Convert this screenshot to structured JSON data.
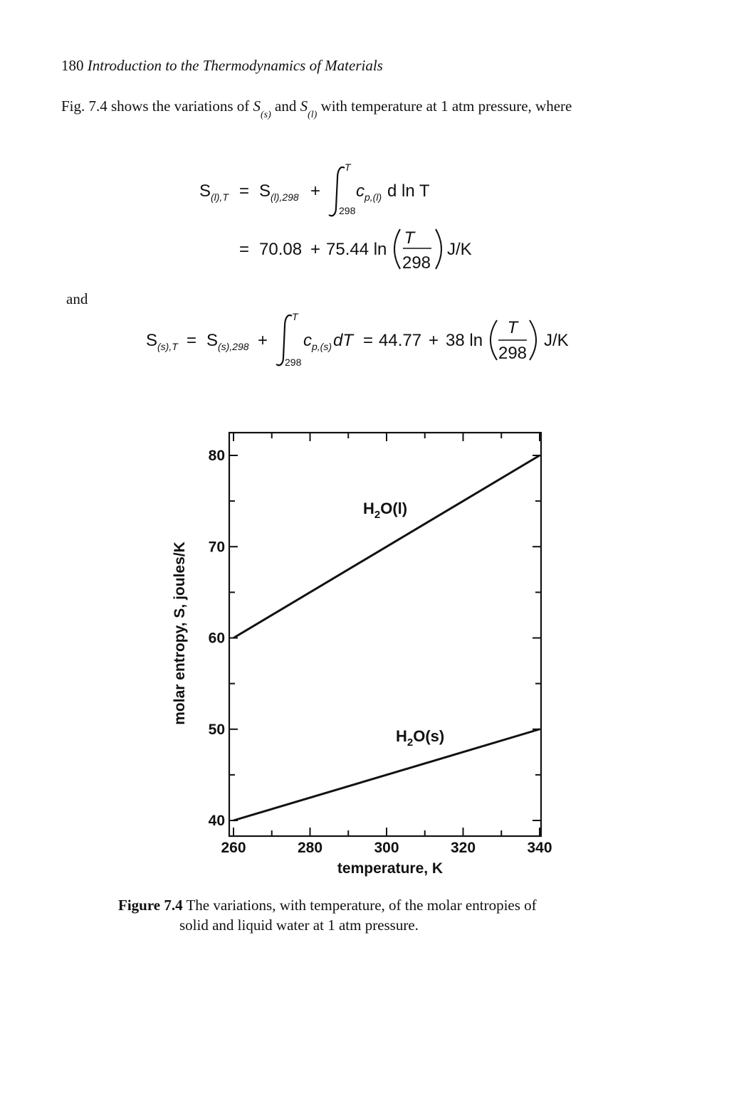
{
  "header": {
    "page_number": "180",
    "book_title": "Introduction to the Thermodynamics of Materials"
  },
  "intro": {
    "text_before": "Fig. 7.4 shows the variations of",
    "sym_s": "S",
    "sub_s": "(s)",
    "text_mid": "and",
    "sym_l": "S",
    "sub_l": "(l)",
    "text_after": "with temperature at 1 atm pressure, where"
  },
  "equation_liquid": {
    "lhs": "S",
    "lhs_sub": "(l),T",
    "eq": "=",
    "ref": "S",
    "ref_sub": "(l),298",
    "plus": "+",
    "upper_limit": "T",
    "lower_limit": "298",
    "integrand": "c",
    "integrand_sub": "p,(l)",
    "differential": "d ln T",
    "line2_eq": "=",
    "line2_a": "70.08",
    "line2_plus": "+",
    "line2_b": "75.44 ln",
    "frac_num": "T",
    "frac_den": "298",
    "unit": "J/K"
  },
  "and_word": "and",
  "equation_solid": {
    "lhs": "S",
    "lhs_sub": "(s),T",
    "eq": "=",
    "ref": "S",
    "ref_sub": "(s),298",
    "plus": "+",
    "upper_limit": "T",
    "lower_limit": "298",
    "integrand": "c",
    "integrand_sub": "p,(s)",
    "differential": "dT",
    "eq2": "=",
    "a": "44.77",
    "plus2": "+",
    "b": "38 ln",
    "frac_num": "T",
    "frac_den": "298",
    "unit": "J/K"
  },
  "chart_data": {
    "type": "line",
    "title": "",
    "xlabel": "temperature, K",
    "ylabel": "molar entropy, S, joules/K",
    "xlim": [
      260,
      340
    ],
    "ylim": [
      40,
      80
    ],
    "x_ticks": [
      260,
      280,
      300,
      320,
      340
    ],
    "y_ticks": [
      40,
      50,
      60,
      70,
      80
    ],
    "grid": false,
    "series": [
      {
        "name": "H2O(l)",
        "label_main": "H",
        "label_sub": "2",
        "label_rest": "O(l)",
        "x": [
          260,
          340
        ],
        "y": [
          60,
          80
        ]
      },
      {
        "name": "H2O(s)",
        "label_main": "H",
        "label_sub": "2",
        "label_rest": "O(s)",
        "x": [
          260,
          340
        ],
        "y": [
          40,
          50
        ]
      }
    ]
  },
  "caption": {
    "label": "Figure 7.4",
    "text_line1": "The variations, with temperature, of the molar entropies of",
    "text_line2": "solid and liquid water at 1 atm pressure."
  }
}
